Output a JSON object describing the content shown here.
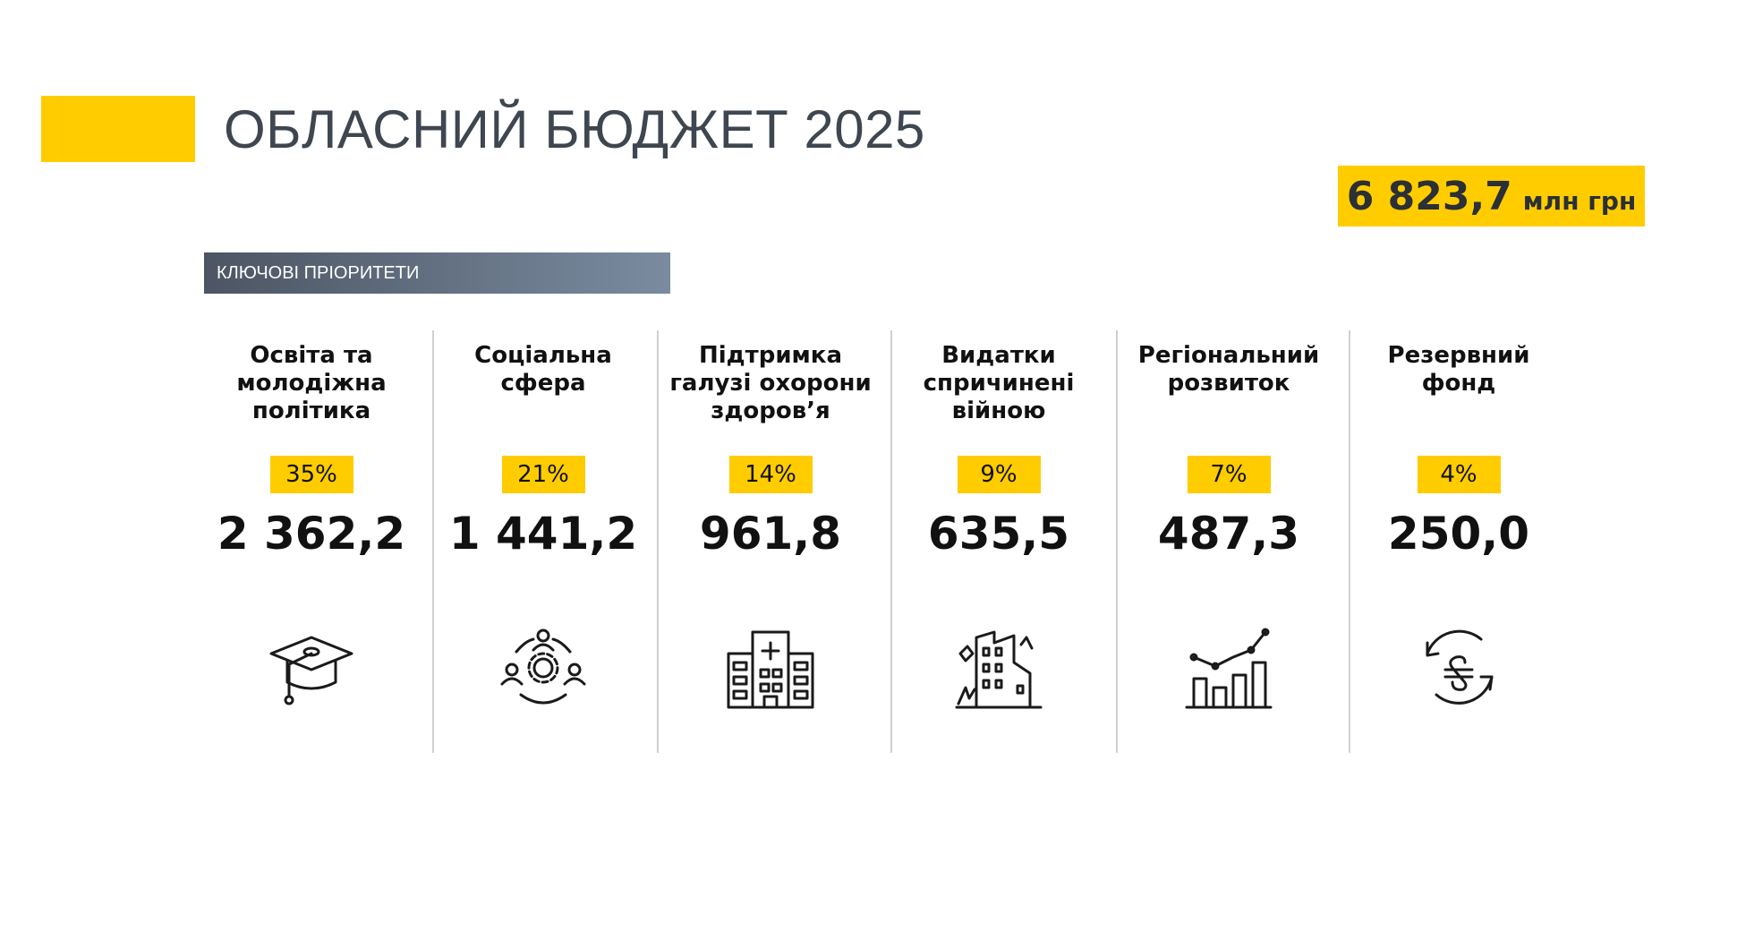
{
  "header": {
    "title": "ОБЛАСНИЙ БЮДЖЕТ 2025"
  },
  "total": {
    "value": "6 823,7",
    "unit": "млн грн"
  },
  "section": "КЛЮЧОВІ ПРІОРИТЕТИ",
  "items": [
    {
      "label": [
        "Освіта та",
        "молодіжна",
        "політика"
      ],
      "share": "35%",
      "amount": "2 362,2"
    },
    {
      "label": [
        "Соціальна",
        "сфера"
      ],
      "share": "21%",
      "amount": "1 441,2"
    },
    {
      "label": [
        "Підтримка",
        "галузі охорони",
        "здоров’я"
      ],
      "share": "14%",
      "amount": "961,8"
    },
    {
      "label": [
        "Видатки",
        "спричинені",
        "війною"
      ],
      "share": "9%",
      "amount": "635,5"
    },
    {
      "label": [
        "Регіональний",
        "розвиток"
      ],
      "share": "7%",
      "amount": "487,3"
    },
    {
      "label": [
        "Резервний",
        "фонд"
      ],
      "share": "4%",
      "amount": "250,0"
    }
  ]
}
